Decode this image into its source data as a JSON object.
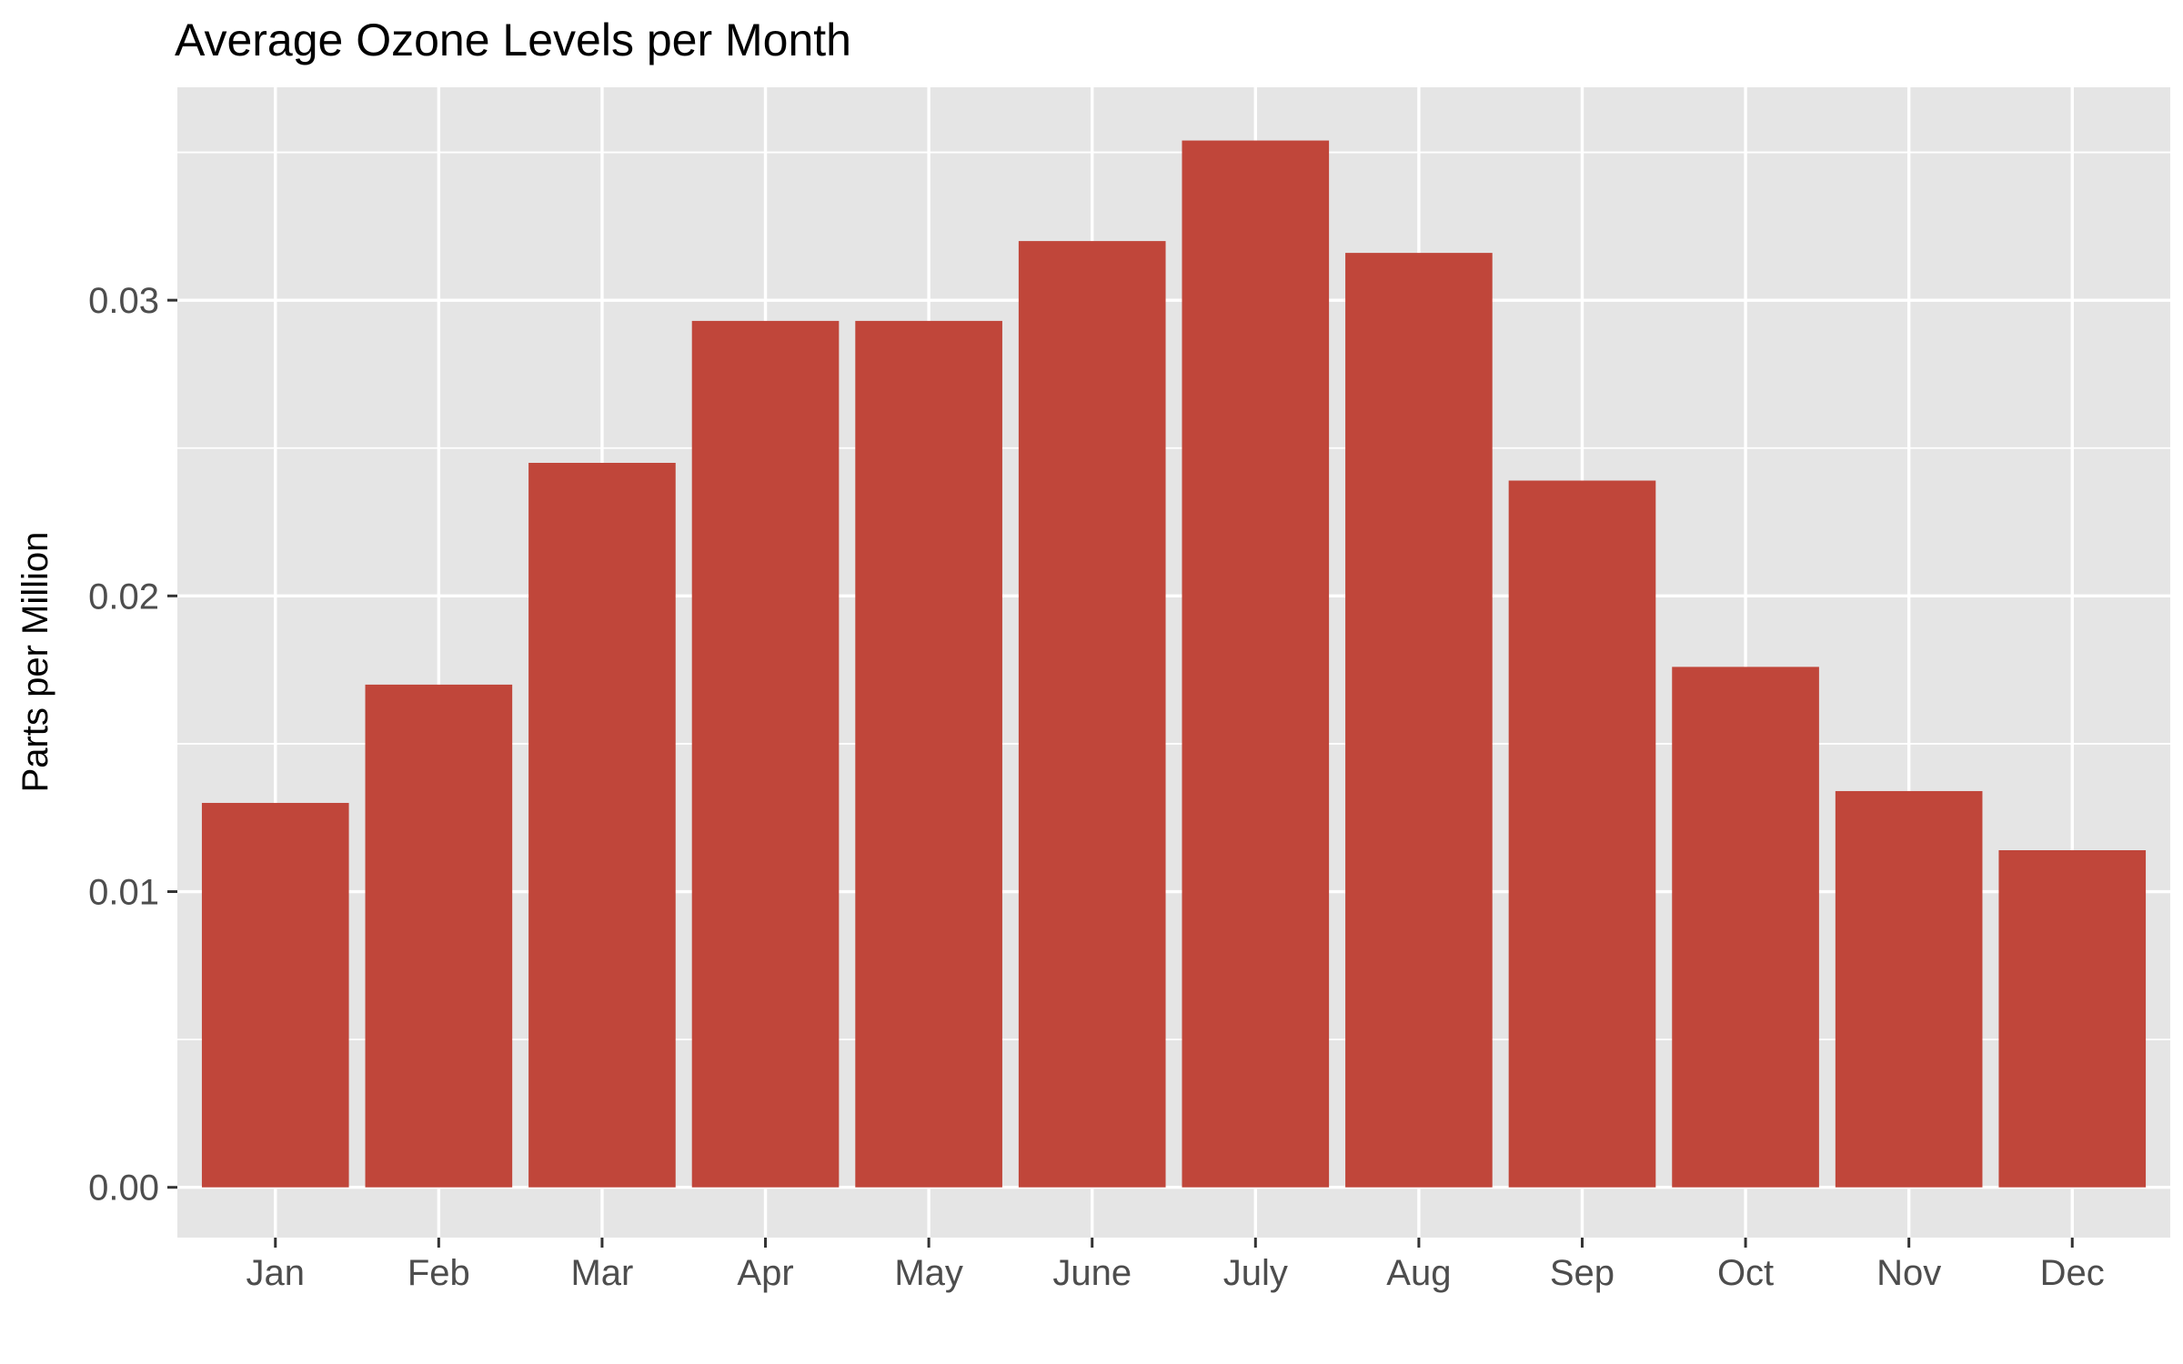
{
  "chart_data": {
    "type": "bar",
    "title": "Average Ozone Levels per Month",
    "xlabel": "",
    "ylabel": "Parts per Million",
    "categories": [
      "Jan",
      "Feb",
      "Mar",
      "Apr",
      "May",
      "June",
      "July",
      "Aug",
      "Sep",
      "Oct",
      "Nov",
      "Dec"
    ],
    "values": [
      0.013,
      0.017,
      0.0245,
      0.0293,
      0.0293,
      0.032,
      0.0354,
      0.0316,
      0.0239,
      0.0176,
      0.0134,
      0.0114
    ],
    "ylim": [
      -0.0017,
      0.0372
    ],
    "yticks": [
      0.0,
      0.01,
      0.02,
      0.03
    ],
    "ytick_labels": [
      "0.00",
      "0.01",
      "0.02",
      "0.03"
    ],
    "grid": true,
    "legend": "none",
    "colors": {
      "bar": "#C0463A",
      "panel": "#E5E5E5",
      "grid": "#FFFFFF",
      "tick_text": "#4D4D4D",
      "axis_tick": "#333333"
    }
  }
}
